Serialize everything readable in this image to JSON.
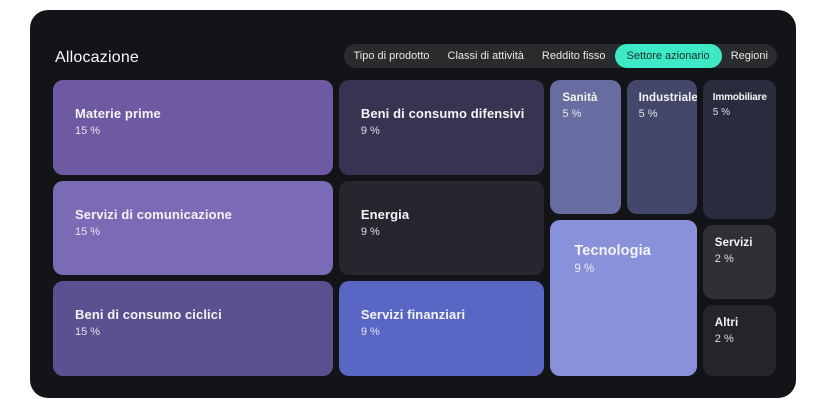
{
  "header": {
    "title": "Allocazione"
  },
  "tabs": {
    "items": [
      {
        "label": "Tipo di prodotto",
        "active": false
      },
      {
        "label": "Classi di attività",
        "active": false
      },
      {
        "label": "Reddito fisso",
        "active": false
      },
      {
        "label": "Settore azionario",
        "active": true
      },
      {
        "label": "Regioni",
        "active": false
      }
    ],
    "active_pill_color": "#3ee9c6",
    "active_text_color": "#14302a"
  },
  "treemap": {
    "tiles": [
      {
        "id": "materie-prime",
        "label": "Materie prime",
        "value": "15 %",
        "color": "#6d5aa2"
      },
      {
        "id": "servizi-di-comunicazione",
        "label": "Servizi di comunicazione",
        "value": "15 %",
        "color": "#7b6ab6"
      },
      {
        "id": "beni-di-consumo-ciclici",
        "label": "Beni di consumo ciclici",
        "value": "15 %",
        "color": "#5a5190"
      },
      {
        "id": "beni-di-consumo-difensivi",
        "label": "Beni di consumo difensivi",
        "value": "9 %",
        "color": "#373351"
      },
      {
        "id": "energia",
        "label": "Energia",
        "value": "9 %",
        "color": "#26262f"
      },
      {
        "id": "servizi-finanziari",
        "label": "Servizi finanziari",
        "value": "9 %",
        "color": "#5a66c4"
      },
      {
        "id": "sanita",
        "label": "Sanità",
        "value": "5 %",
        "color": "#676da0"
      },
      {
        "id": "industriale",
        "label": "Industriale",
        "value": "5 %",
        "color": "#434769"
      },
      {
        "id": "immobiliare",
        "label": "Immobiliare",
        "value": "5 %",
        "color": "#282c3d"
      },
      {
        "id": "tecnologia",
        "label": "Tecnologia",
        "value": "9 %",
        "color": "#8991db"
      },
      {
        "id": "servizi",
        "label": "Servizi",
        "value": "2 %",
        "color": "#2f2f34"
      },
      {
        "id": "altri",
        "label": "Altri",
        "value": "2 %",
        "color": "#242429"
      }
    ]
  },
  "chart_data": {
    "type": "treemap",
    "title": "Allocazione",
    "unit": "%",
    "items": [
      {
        "label": "Materie prime",
        "value": 15
      },
      {
        "label": "Servizi di comunicazione",
        "value": 15
      },
      {
        "label": "Beni di consumo ciclici",
        "value": 15
      },
      {
        "label": "Beni di consumo difensivi",
        "value": 9
      },
      {
        "label": "Energia",
        "value": 9
      },
      {
        "label": "Servizi finanziari",
        "value": 9
      },
      {
        "label": "Tecnologia",
        "value": 9
      },
      {
        "label": "Sanità",
        "value": 5
      },
      {
        "label": "Industriale",
        "value": 5
      },
      {
        "label": "Immobiliare",
        "value": 5
      },
      {
        "label": "Servizi",
        "value": 2
      },
      {
        "label": "Altri",
        "value": 2
      }
    ],
    "legend": false,
    "active_filter": "Settore azionario"
  },
  "colors": {
    "page_background": "#ffffff",
    "panel_background": "#131418",
    "tab_bar_background": "#2a2b2d"
  }
}
